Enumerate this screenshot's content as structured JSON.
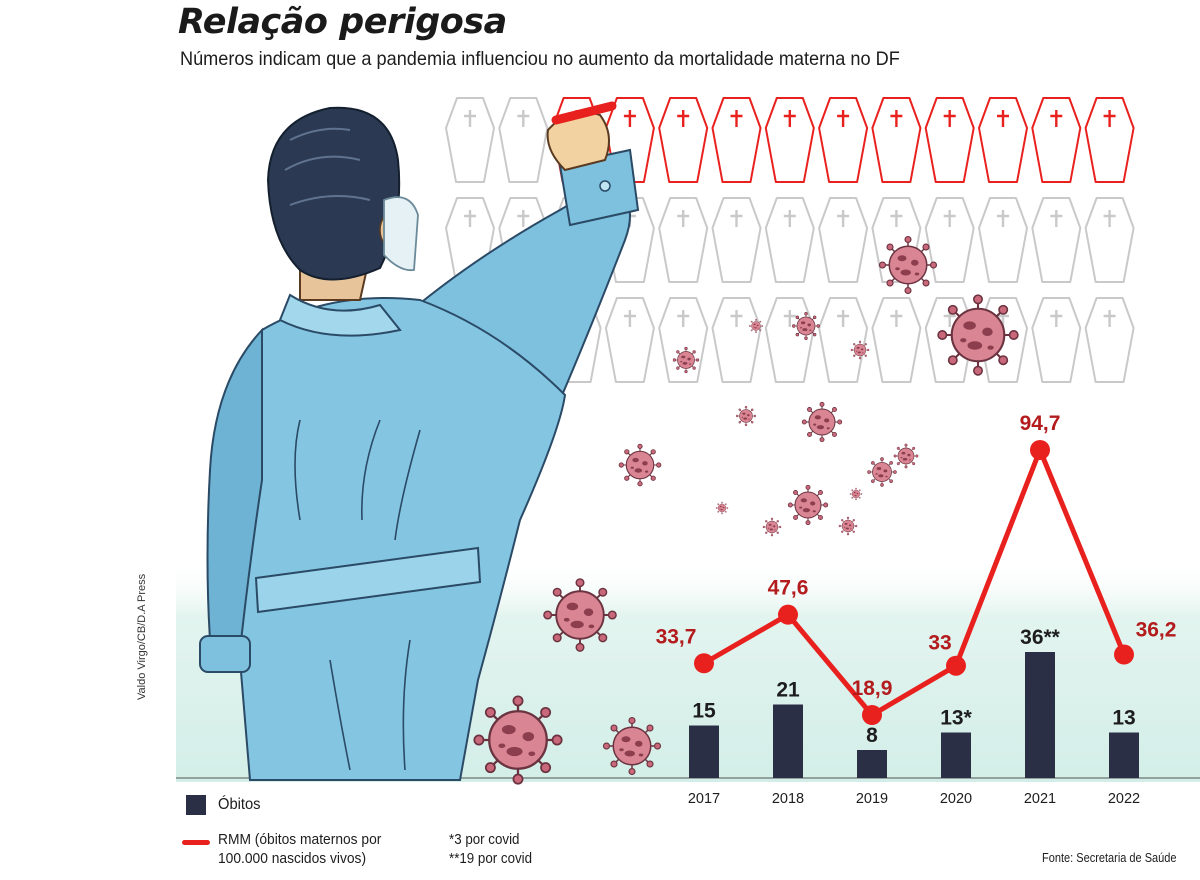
{
  "header": {
    "title": "Relação perigosa",
    "subtitle": "Números indicam que a pandemia influenciou no aumento da mortalidade materna no DF"
  },
  "colors": {
    "bars": "#2b2f45",
    "line": "#e8211e",
    "line_labels": "#b31b1d",
    "background_band": "#d8f0ea",
    "coffin_outline": "#c9c9c9",
    "virus": "#c9687a",
    "doctor_coat": "#7ec1df"
  },
  "icons": {
    "coffin": "coffin-cross-icon",
    "virus": "coronavirus-icon",
    "doctor": "doctor-with-mask-illustration"
  },
  "illustration": {
    "coffin_rows": 3,
    "coffins_per_row": 13,
    "red_coffins_highlighted": 11
  },
  "legend": {
    "bars_label": "Óbitos",
    "line_label": "RMM (óbitos maternos por 100.000 nascidos vivos)"
  },
  "notes": [
    "*3 por covid",
    "**19 por covid"
  ],
  "source": "Fonte: Secretaria de Saúde",
  "credit": "Valdo Virgo/CB/D.A Press",
  "chart_data": {
    "type": "bar",
    "categories": [
      "2017",
      "2018",
      "2019",
      "2020",
      "2021",
      "2022"
    ],
    "series": [
      {
        "name": "Óbitos",
        "type": "bar",
        "values": [
          15,
          21,
          8,
          13,
          36,
          13
        ],
        "labels": [
          "15",
          "21",
          "8",
          "13*",
          "36**",
          "13"
        ]
      },
      {
        "name": "RMM",
        "type": "line",
        "values": [
          33.7,
          47.6,
          18.9,
          33,
          94.7,
          36.2
        ],
        "labels": [
          "33,7",
          "47,6",
          "18,9",
          "33",
          "94,7",
          "36,2"
        ]
      }
    ],
    "legend_position": "bottom-left",
    "grid": false
  }
}
